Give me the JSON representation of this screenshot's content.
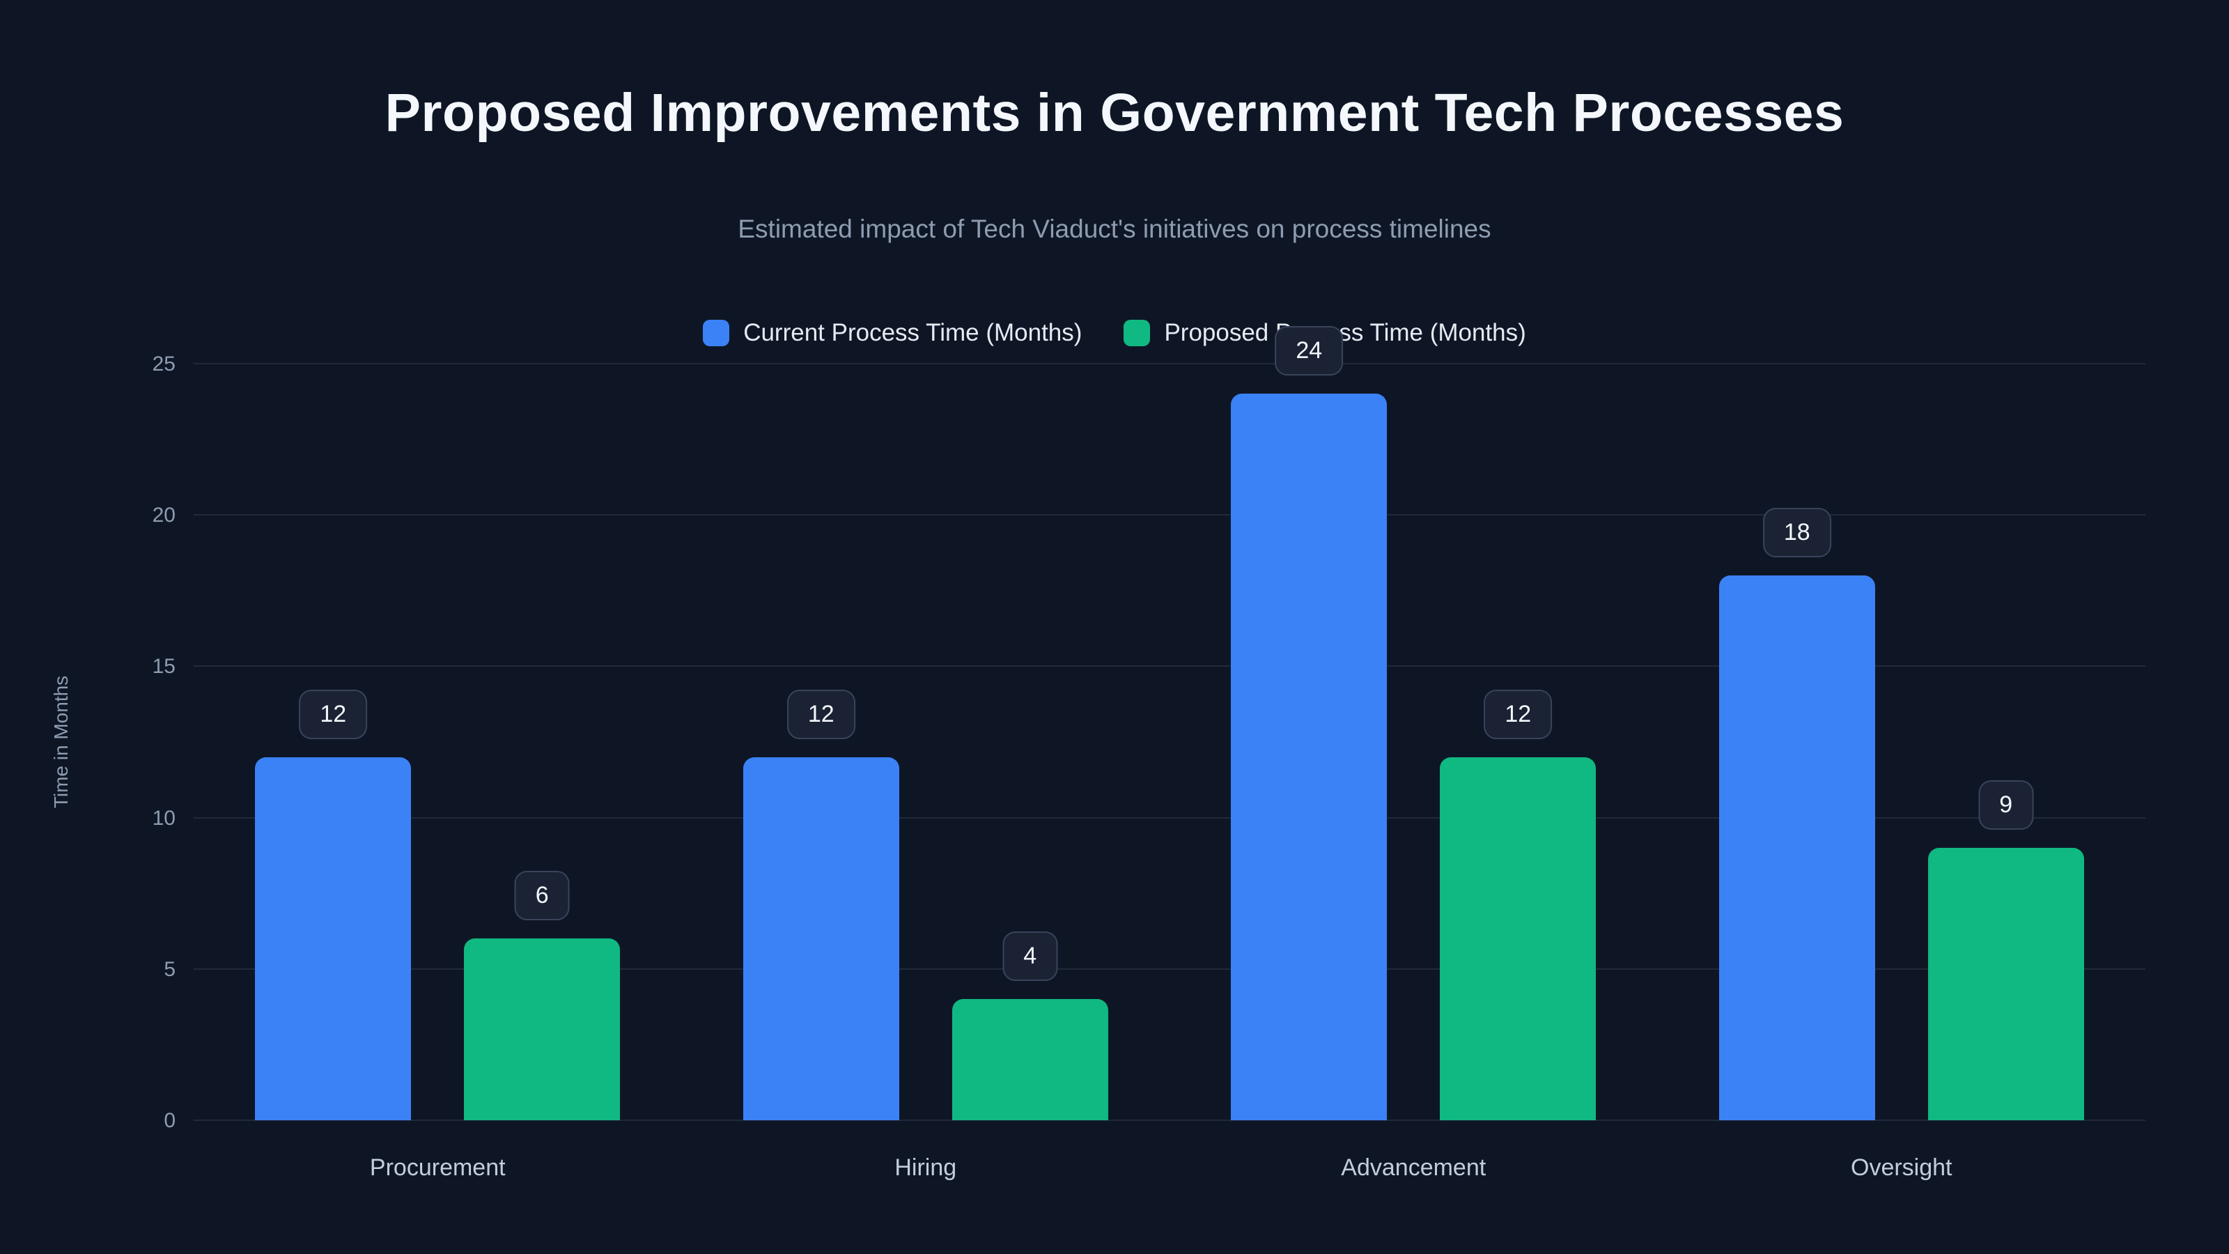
{
  "title": "Proposed Improvements in Government Tech Processes",
  "subtitle": "Estimated impact of Tech Viaduct's initiatives on process timelines",
  "colors": {
    "background": "#0e1626",
    "current_series": "#3b82f6",
    "proposed_series": "#10b981",
    "grid": "rgba(148,163,184,0.14)"
  },
  "chart_data": {
    "type": "bar",
    "categories": [
      "Procurement",
      "Hiring",
      "Advancement",
      "Oversight"
    ],
    "series": [
      {
        "name": "Current Process Time (Months)",
        "color": "#3b82f6",
        "values": [
          12,
          12,
          24,
          18
        ]
      },
      {
        "name": "Proposed Process Time (Months)",
        "color": "#10b981",
        "values": [
          6,
          4,
          12,
          9
        ]
      }
    ],
    "title": "Proposed Improvements in Government Tech Processes",
    "xlabel": "",
    "ylabel": "Time in Months",
    "ylim": [
      0,
      25
    ],
    "yticks": [
      0,
      5,
      10,
      15,
      20,
      25
    ],
    "grid": true,
    "legend_position": "top",
    "data_labels": true
  }
}
